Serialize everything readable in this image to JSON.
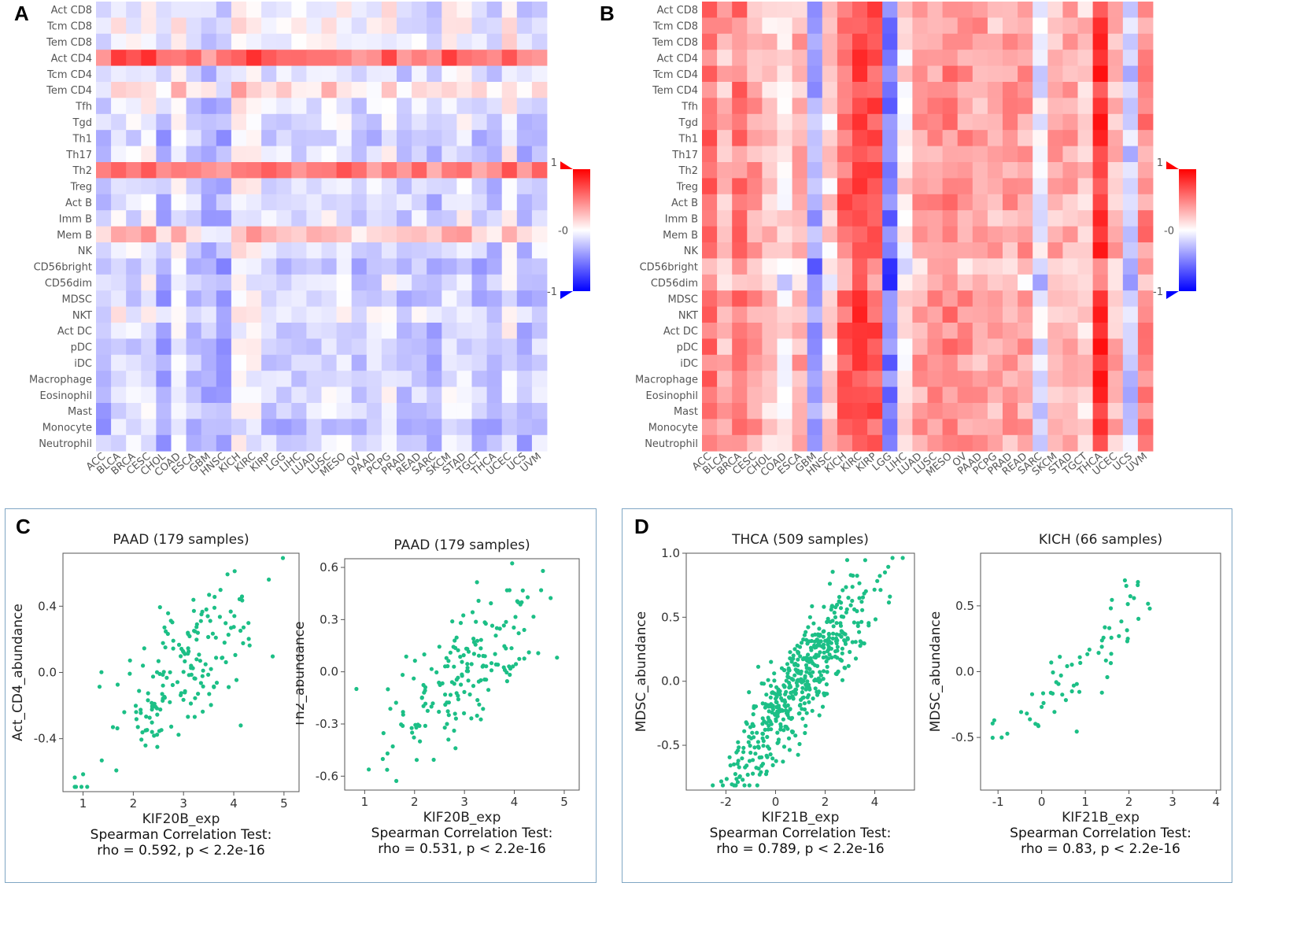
{
  "panel_letters": {
    "a": "A",
    "b": "B",
    "c": "C",
    "d": "D"
  },
  "chart_data": [
    {
      "id": "A",
      "type": "heatmap",
      "title": "",
      "rows": [
        "Act CD8",
        "Tcm CD8",
        "Tem CD8",
        "Act CD4",
        "Tcm CD4",
        "Tem CD4",
        "Tfh",
        "Tgd",
        "Th1",
        "Th17",
        "Th2",
        "Treg",
        "Act B",
        "Imm B",
        "Mem B",
        "NK",
        "CD56bright",
        "CD56dim",
        "MDSC",
        "NKT",
        "Act DC",
        "pDC",
        "iDC",
        "Macrophage",
        "Eosinophil",
        "Mast",
        "Monocyte",
        "Neutrophil"
      ],
      "columns": [
        "ACC",
        "BLCA",
        "BRCA",
        "CESC",
        "CHOL",
        "COAD",
        "ESCA",
        "GBM",
        "HNSC",
        "KICH",
        "KIRC",
        "KIRP",
        "LGG",
        "LIHC",
        "LUAD",
        "LUSC",
        "MESO",
        "OV",
        "PAAD",
        "PCPG",
        "PRAD",
        "READ",
        "SARC",
        "SKCM",
        "STAD",
        "TGCT",
        "THCA",
        "UCEC",
        "UCS",
        "UVM"
      ],
      "row_means": [
        -0.08,
        -0.05,
        -0.08,
        0.55,
        -0.12,
        0.12,
        -0.12,
        -0.15,
        -0.2,
        -0.15,
        0.5,
        -0.15,
        -0.15,
        -0.15,
        0.18,
        -0.12,
        -0.25,
        -0.15,
        -0.2,
        -0.08,
        -0.15,
        -0.2,
        -0.2,
        -0.18,
        -0.15,
        -0.2,
        -0.25,
        -0.18
      ],
      "colorbar": {
        "max_label": "1",
        "mid_label": "-0",
        "min_label": "-1",
        "range": [
          -1,
          1
        ]
      }
    },
    {
      "id": "B",
      "type": "heatmap",
      "title": "",
      "rows": [
        "Act CD8",
        "Tcm CD8",
        "Tem CD8",
        "Act CD4",
        "Tcm CD4",
        "Tem CD4",
        "Tfh",
        "Tgd",
        "Th1",
        "Th17",
        "Th2",
        "Treg",
        "Act B",
        "Imm B",
        "Mem B",
        "NK",
        "CD56bright",
        "CD56dim",
        "MDSC",
        "NKT",
        "Act DC",
        "pDC",
        "iDC",
        "Macrophage",
        "Eosinophil",
        "Mast",
        "Monocyte",
        "Neutrophil"
      ],
      "columns": [
        "ACC",
        "BLCA",
        "BRCA",
        "CESC",
        "CHOL",
        "COAD",
        "ESCA",
        "GBM",
        "HNSC",
        "KICH",
        "KIRC",
        "KIRP",
        "LGG",
        "LIHC",
        "LUAD",
        "LUSC",
        "MESO",
        "OV",
        "PAAD",
        "PCPG",
        "PRAD",
        "READ",
        "SARC",
        "SKCM",
        "STAD",
        "TGCT",
        "THCA",
        "UCEC",
        "UCS",
        "UVM"
      ],
      "column_means": [
        0.55,
        0.3,
        0.5,
        0.35,
        0.2,
        0.05,
        0.3,
        -0.35,
        0.15,
        0.6,
        0.7,
        0.65,
        -0.5,
        0.1,
        0.35,
        0.4,
        0.45,
        0.4,
        0.35,
        0.3,
        0.35,
        0.35,
        -0.1,
        0.3,
        0.35,
        0.2,
        0.8,
        0.3,
        -0.2,
        0.45
      ],
      "colorbar": {
        "max_label": "1",
        "mid_label": "-0",
        "min_label": "-1",
        "range": [
          -1,
          1
        ]
      }
    },
    {
      "id": "C1",
      "type": "scatter",
      "title": "PAAD (179 samples)",
      "xlabel": "KIF20B_exp",
      "ylabel": "Act_CD4_abundance",
      "xlim": [
        0.6,
        5.3
      ],
      "ylim": [
        -0.72,
        0.72
      ],
      "xticks": [
        1,
        2,
        3,
        4,
        5
      ],
      "yticks": [
        -0.4,
        0.0,
        0.4
      ],
      "ytick_labels": [
        "-0.4",
        "0.0",
        "0.4"
      ],
      "n": 179,
      "rho": 0.592,
      "slope": 0.26,
      "x_center": 3.0,
      "y_center": 0.0,
      "x_sd": 0.8,
      "noise": 0.2,
      "stat_title": "Spearman Correlation Test:",
      "stat_text": "rho = 0.592, p < 2.2e-16"
    },
    {
      "id": "C2",
      "type": "scatter",
      "title": "PAAD (179 samples)",
      "xlabel": "KIF20B_exp",
      "ylabel": "Th2_abundance",
      "xlim": [
        0.6,
        5.3
      ],
      "ylim": [
        -0.68,
        0.65
      ],
      "xticks": [
        1,
        2,
        3,
        4,
        5
      ],
      "yticks": [
        -0.6,
        -0.3,
        0.0,
        0.3,
        0.6
      ],
      "ytick_labels": [
        "-0.6",
        "-0.3",
        "0.0",
        "0.3",
        "0.6"
      ],
      "n": 179,
      "rho": 0.531,
      "slope": 0.2,
      "x_center": 3.0,
      "y_center": 0.0,
      "x_sd": 0.8,
      "noise": 0.17,
      "stat_title": "Spearman Correlation Test:",
      "stat_text": "rho = 0.531, p < 2.2e-16"
    },
    {
      "id": "D1",
      "type": "scatter",
      "title": "THCA (509 samples)",
      "xlabel": "KIF21B_exp",
      "ylabel": "MDSC_abundance",
      "xlim": [
        -3.6,
        5.6
      ],
      "ylim": [
        -0.85,
        1.0
      ],
      "xticks": [
        -2,
        0,
        2,
        4
      ],
      "yticks": [
        -0.5,
        0.0,
        0.5,
        1.0
      ],
      "ytick_labels": [
        "-0.5",
        "0.0",
        "0.5",
        "1.0"
      ],
      "n": 509,
      "rho": 0.789,
      "slope": 0.25,
      "x_center": 1.0,
      "y_center": 0.0,
      "x_sd": 1.4,
      "noise": 0.2,
      "stat_title": "Spearman Correlation Test:",
      "stat_text": "rho = 0.789, p < 2.2e-16"
    },
    {
      "id": "D2",
      "type": "scatter",
      "title": "KICH (66 samples)",
      "xlabel": "KIF21B_exp",
      "ylabel": "MDSC_abundance",
      "xlim": [
        -1.4,
        4.1
      ],
      "ylim": [
        -0.9,
        0.9
      ],
      "xticks": [
        -1,
        0,
        1,
        2,
        3,
        4
      ],
      "yticks": [
        -0.5,
        0.0,
        0.5
      ],
      "ytick_labels": [
        "-0.5",
        "0.0",
        "0.5"
      ],
      "n": 66,
      "rho": 0.83,
      "slope": 0.3,
      "x_center": 0.8,
      "y_center": 0.0,
      "x_sd": 1.1,
      "noise": 0.15,
      "stat_title": "Spearman Correlation Test:",
      "stat_text": "rho = 0.83, p < 2.2e-16"
    }
  ],
  "colors": {
    "point": "#1cbf86",
    "hm_pos": "#ff0000",
    "hm_neg": "#0000ff",
    "box_border": "#7fa6c4"
  }
}
